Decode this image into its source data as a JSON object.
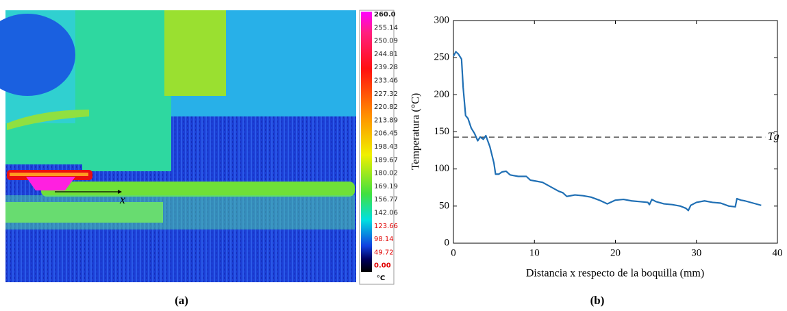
{
  "thermal_image": {
    "colorbar_labels": [
      "260.0",
      "255.14",
      "250.09",
      "244.81",
      "239.28",
      "233.46",
      "227.32",
      "220.82",
      "213.89",
      "206.45",
      "198.43",
      "189.67",
      "180.02",
      "169.19",
      "156.77",
      "142.06",
      "123.66",
      "98.14",
      "49.72",
      "0.00"
    ],
    "colorbar_unit": "°C",
    "annotation": "x"
  },
  "captions": [
    "(a)",
    "(b)"
  ],
  "chart_data": {
    "type": "line",
    "x_label": "Distancia x respecto de la boquilla (mm)",
    "y_label": "Temperatura (°C)",
    "color": "#1f6fb4",
    "x": [
      0,
      0.3,
      0.6,
      1.0,
      1.2,
      1.5,
      1.8,
      2.2,
      2.6,
      3.0,
      3.3,
      3.7,
      4.0,
      4.5,
      5.0,
      5.2,
      5.6,
      6.0,
      6.5,
      7.0,
      7.5,
      8.0,
      9.0,
      9.5,
      10,
      11,
      12,
      13,
      13.5,
      14,
      15,
      16,
      17,
      18,
      18.8,
      19,
      20,
      21,
      22,
      23,
      24,
      24.2,
      24.5,
      25,
      26,
      27,
      28,
      28.7,
      29,
      29.3,
      30,
      31,
      32,
      33,
      34,
      34.8,
      35,
      35.5,
      36,
      37,
      38
    ],
    "values": [
      252,
      258,
      255,
      248,
      210,
      172,
      168,
      155,
      148,
      138,
      143,
      140,
      145,
      130,
      108,
      93,
      93,
      96,
      97,
      92,
      91,
      90,
      90,
      85,
      84,
      82,
      76,
      70,
      68,
      63,
      65,
      64,
      62,
      58,
      54,
      53,
      58,
      59,
      57,
      56,
      55,
      52,
      59,
      56,
      53,
      52,
      50,
      47,
      44,
      51,
      55,
      57,
      55,
      54,
      50,
      49,
      60,
      58,
      57,
      54,
      51
    ],
    "xlim": [
      0,
      40
    ],
    "ylim": [
      0,
      300
    ],
    "xticks": [
      0,
      10,
      20,
      30,
      40
    ],
    "yticks": [
      0,
      50,
      100,
      150,
      200,
      250,
      300
    ],
    "reference_line": {
      "value": 143,
      "label": "Tg"
    }
  }
}
